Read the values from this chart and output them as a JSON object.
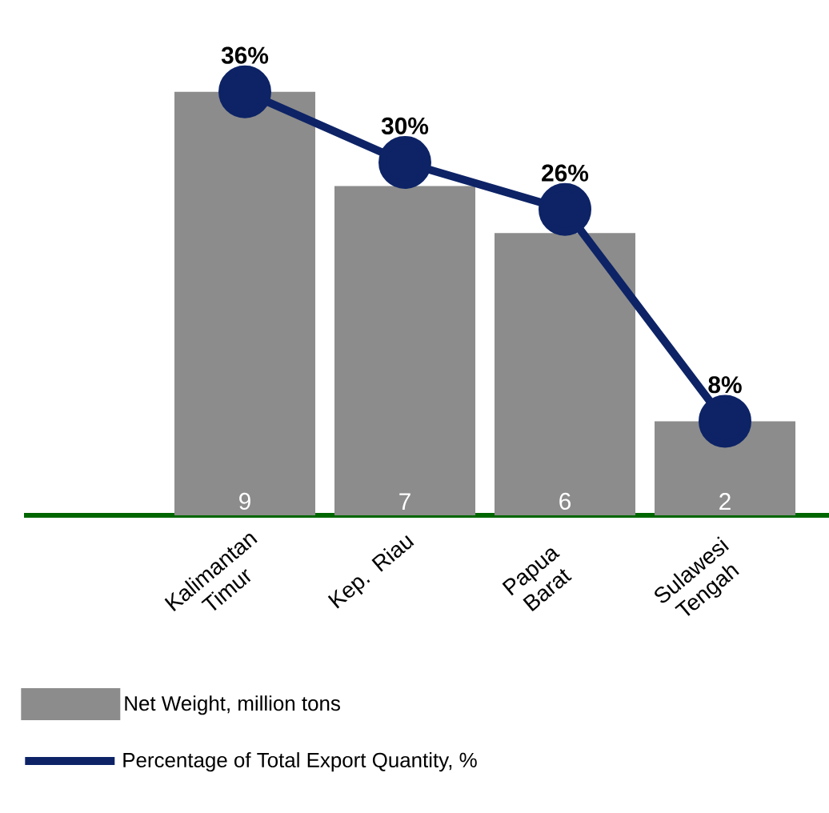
{
  "chart_data": {
    "type": "bar",
    "categories": [
      "Kalimantan Timur",
      "Kep. Riau",
      "Papua Barat",
      "Sulawesi Tengah"
    ],
    "series": [
      {
        "name": "Net Weight, million tons",
        "color": "#8c8c8c",
        "values": [
          9,
          7,
          6,
          2
        ],
        "value_labels": [
          "9",
          "7",
          "6",
          "2"
        ]
      },
      {
        "name": "Percentage of Total Export Quantity, %",
        "type": "line",
        "axis": "y2",
        "color": "#0d2366",
        "values": [
          36,
          30,
          26,
          8
        ],
        "value_labels": [
          "36%",
          "30%",
          "26%",
          "8%"
        ]
      }
    ],
    "tick_labels": "x",
    "grid": false,
    "legend": "bottom",
    "marker": "circle",
    "line_style": "solid"
  }
}
